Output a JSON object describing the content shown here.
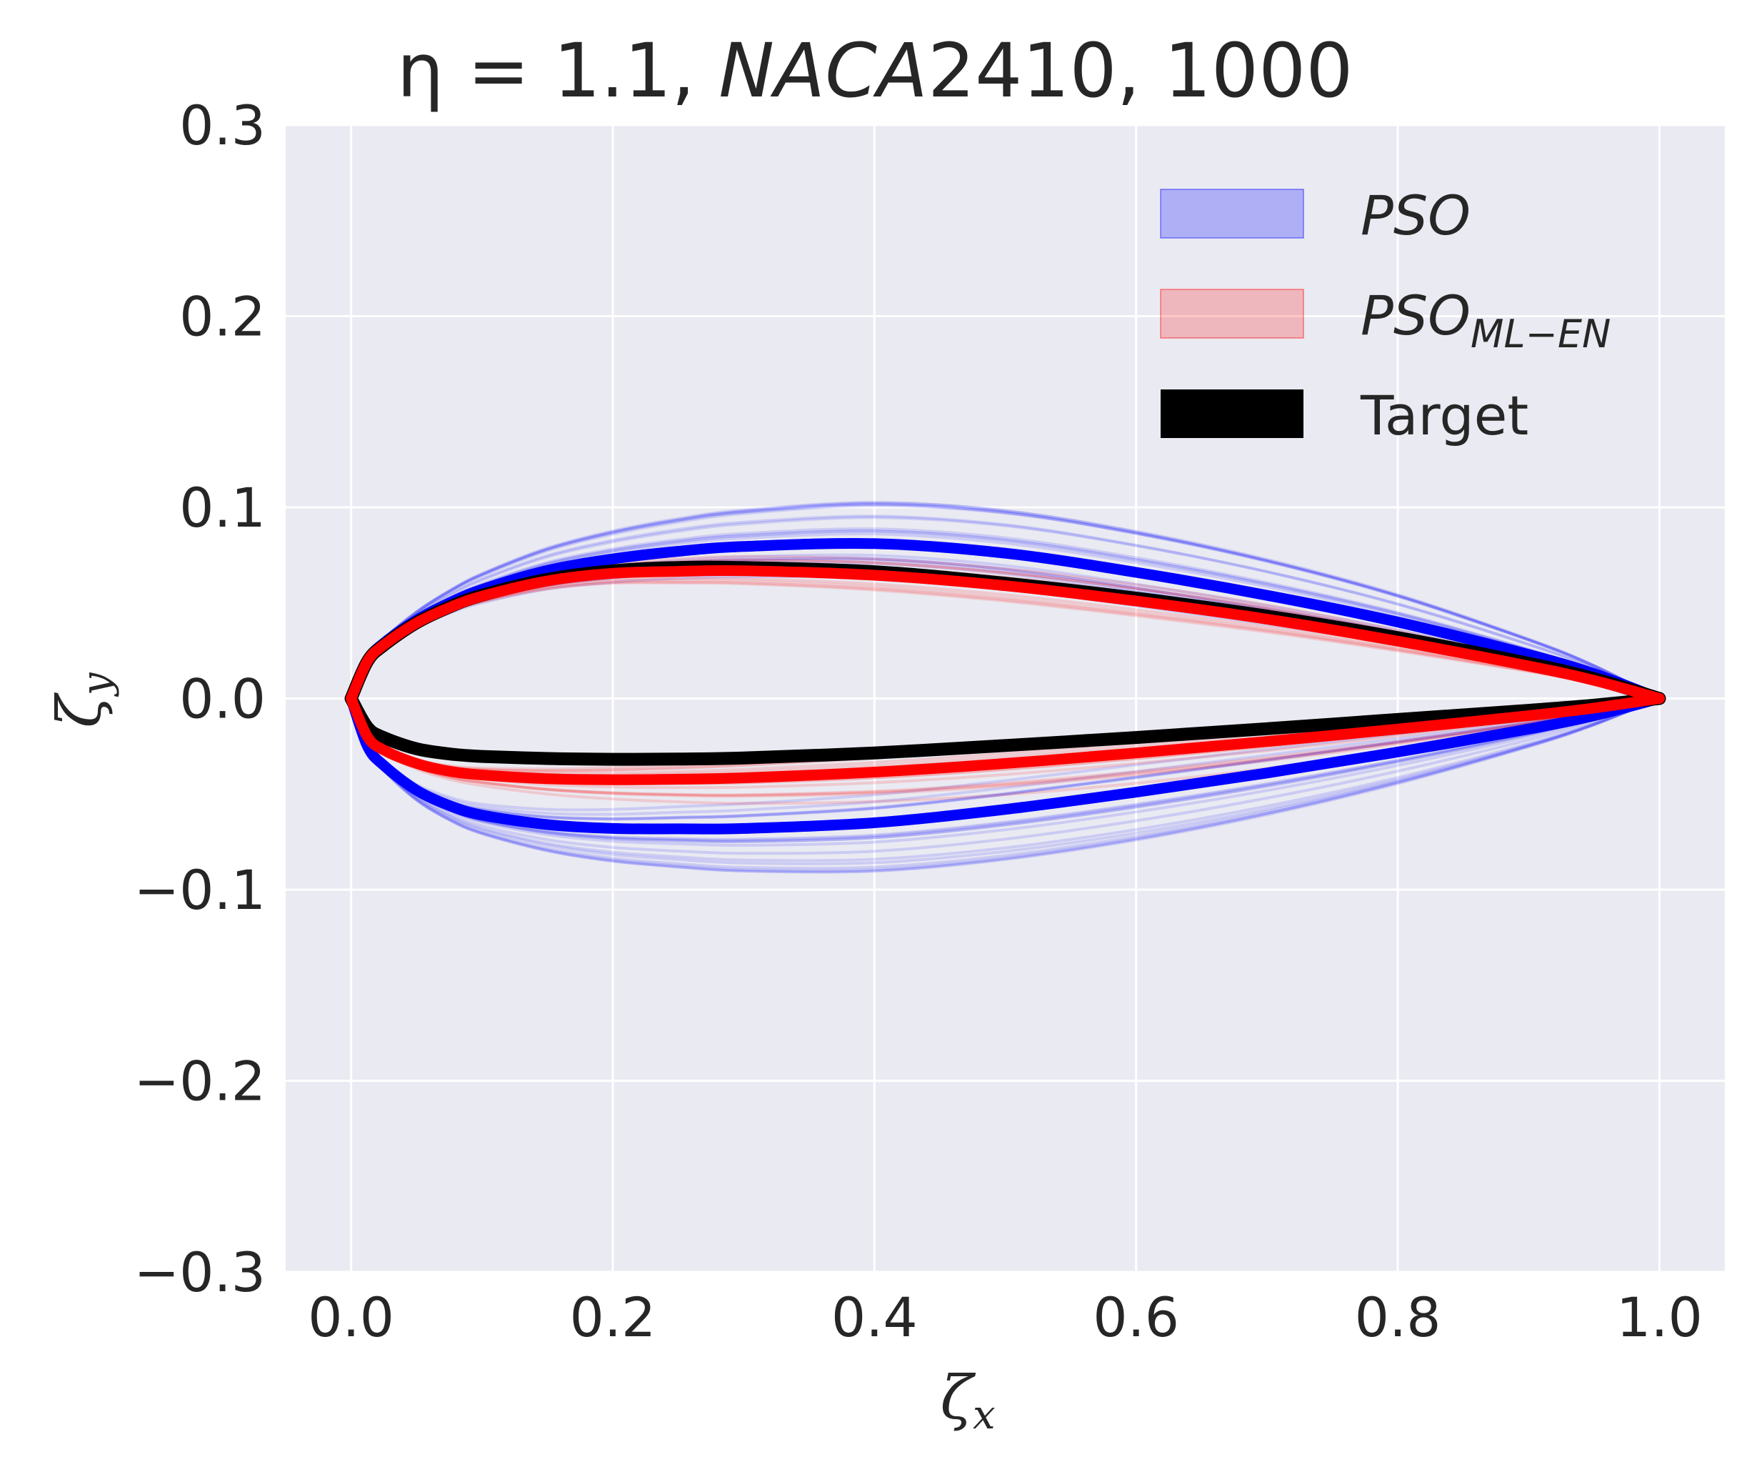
{
  "chart_data": {
    "type": "line",
    "title_prefix": "η = 1.1, ",
    "title_italic": "NACA",
    "title_suffix": "2410, 1000",
    "xlabel": "ζ",
    "xlabel_sub": "x",
    "ylabel": "ζ",
    "ylabel_sub": "y",
    "xlim": [
      -0.05,
      1.05
    ],
    "ylim": [
      -0.3,
      0.3
    ],
    "xticks": [
      "0.0",
      "0.2",
      "0.4",
      "0.6",
      "0.8",
      "1.0"
    ],
    "yticks": [
      "−0.3",
      "−0.2",
      "−0.1",
      "0.0",
      "0.1",
      "0.2",
      "0.3"
    ],
    "grid": true,
    "legend_position": "top-right",
    "legend": [
      {
        "label": "PSO",
        "sub": "",
        "color": "#0000ff"
      },
      {
        "label": "PSO",
        "sub": "ML−EN",
        "color": "#ff0000"
      },
      {
        "label": "Target",
        "sub": "",
        "color": "#000000"
      }
    ],
    "x": [
      0.0,
      0.0125,
      0.025,
      0.05,
      0.075,
      0.1,
      0.15,
      0.2,
      0.25,
      0.3,
      0.4,
      0.5,
      0.6,
      0.7,
      0.8,
      0.9,
      0.95,
      1.0
    ],
    "series": [
      {
        "name": "Target",
        "color": "#000000",
        "upper": [
          0.0,
          0.0194,
          0.0279,
          0.0396,
          0.0478,
          0.054,
          0.0623,
          0.0668,
          0.0685,
          0.0685,
          0.0663,
          0.0603,
          0.0525,
          0.0431,
          0.0318,
          0.0184,
          0.0104,
          0.0
        ],
        "lower": [
          0.0,
          -0.0151,
          -0.0205,
          -0.0263,
          -0.029,
          -0.0303,
          -0.0314,
          -0.0318,
          -0.0317,
          -0.0311,
          -0.0285,
          -0.0246,
          -0.0204,
          -0.0158,
          -0.011,
          -0.0062,
          -0.0035,
          0.0
        ]
      },
      {
        "name": "PSO",
        "color": "#0000ff",
        "upper": [
          0.0,
          0.02,
          0.029,
          0.041,
          0.05,
          0.057,
          0.067,
          0.073,
          0.077,
          0.0795,
          0.081,
          0.076,
          0.066,
          0.054,
          0.04,
          0.023,
          0.013,
          0.0
        ],
        "lower": [
          0.0,
          -0.025,
          -0.035,
          -0.048,
          -0.056,
          -0.061,
          -0.066,
          -0.068,
          -0.0682,
          -0.068,
          -0.065,
          -0.058,
          -0.049,
          -0.039,
          -0.028,
          -0.016,
          -0.009,
          0.0
        ]
      },
      {
        "name": "PSO_ML-EN",
        "color": "#ff0000",
        "upper": [
          0.0,
          0.0195,
          0.028,
          0.0395,
          0.0475,
          0.0535,
          0.0615,
          0.0655,
          0.0665,
          0.0668,
          0.0645,
          0.059,
          0.051,
          0.0415,
          0.03,
          0.017,
          0.0095,
          0.0
        ],
        "lower": [
          0.0,
          -0.02,
          -0.027,
          -0.034,
          -0.038,
          -0.04,
          -0.042,
          -0.0425,
          -0.0422,
          -0.0415,
          -0.0385,
          -0.034,
          -0.0285,
          -0.0225,
          -0.016,
          -0.009,
          -0.005,
          0.0
        ]
      }
    ]
  }
}
